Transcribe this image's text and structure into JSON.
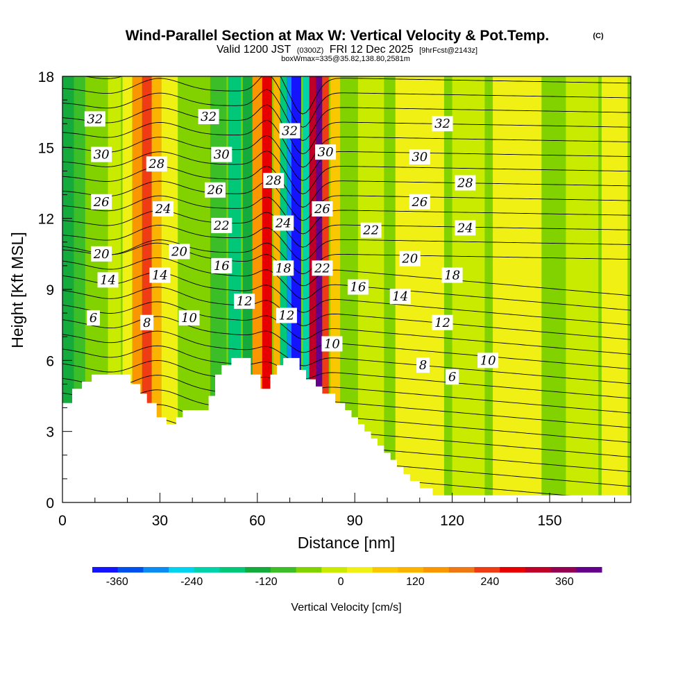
{
  "chart_data": {
    "type": "heatmap",
    "title": "Wind-Parallel Section at Max W: Vertical Velocity & Pot.Temp.",
    "title_mark": "(C)",
    "subtitle_parts": {
      "valid": "Valid 1200 JST",
      "utc": "(0300Z)",
      "date": "FRI 12 Dec 2025",
      "fcst": "[9hrFcst@2143z]"
    },
    "subtitle2": "boxWmax=335@35.82,138.80,2581m",
    "xlabel": "Distance [nm]",
    "ylabel": "Height [Kft MSL]",
    "xlim": [
      0,
      175
    ],
    "ylim": [
      0,
      18
    ],
    "xticks": [
      0,
      30,
      60,
      90,
      120,
      150
    ],
    "yticks": [
      0,
      3,
      6,
      9,
      12,
      15,
      18
    ],
    "colorbar": {
      "label": "Vertical Velocity [cm/s]",
      "tick_labels": [
        "-360",
        "-240",
        "-120",
        "0",
        "120",
        "240",
        "360"
      ],
      "tick_values": [
        -360,
        -240,
        -120,
        0,
        120,
        240,
        360
      ],
      "range": [
        -400,
        420
      ],
      "colors": [
        "#1414ff",
        "#0050f0",
        "#0a8cf0",
        "#00d2f0",
        "#00d2aa",
        "#00c878",
        "#14aa3c",
        "#3cbe28",
        "#82d200",
        "#c8eb00",
        "#f0f014",
        "#fac800",
        "#fab400",
        "#fa9600",
        "#f07814",
        "#f03c14",
        "#e60000",
        "#be0028",
        "#960050",
        "#64008c"
      ]
    },
    "terrain_profile": [
      [
        0,
        4.2
      ],
      [
        3,
        4.2
      ],
      [
        3,
        4.8
      ],
      [
        6,
        4.8
      ],
      [
        6,
        5.1
      ],
      [
        9,
        5.1
      ],
      [
        9,
        5.4
      ],
      [
        21,
        5.4
      ],
      [
        21,
        5.0
      ],
      [
        24,
        5.0
      ],
      [
        24,
        4.6
      ],
      [
        26,
        4.6
      ],
      [
        26,
        4.2
      ],
      [
        29,
        4.2
      ],
      [
        29,
        3.6
      ],
      [
        32,
        3.6
      ],
      [
        32,
        3.3
      ],
      [
        35,
        3.3
      ],
      [
        35,
        3.6
      ],
      [
        37,
        3.6
      ],
      [
        37,
        3.9
      ],
      [
        45,
        3.9
      ],
      [
        45,
        4.5
      ],
      [
        47,
        4.5
      ],
      [
        47,
        5.4
      ],
      [
        49,
        5.4
      ],
      [
        49,
        5.8
      ],
      [
        52,
        5.8
      ],
      [
        52,
        6.1
      ],
      [
        58,
        6.1
      ],
      [
        58,
        5.4
      ],
      [
        61,
        5.4
      ],
      [
        61,
        4.8
      ],
      [
        64,
        4.8
      ],
      [
        64,
        5.4
      ],
      [
        66,
        5.4
      ],
      [
        66,
        5.8
      ],
      [
        68,
        5.8
      ],
      [
        68,
        6.1
      ],
      [
        73,
        6.1
      ],
      [
        73,
        5.6
      ],
      [
        75,
        5.6
      ],
      [
        75,
        5.2
      ],
      [
        78,
        5.2
      ],
      [
        78,
        4.9
      ],
      [
        80,
        4.9
      ],
      [
        80,
        4.6
      ],
      [
        84,
        4.6
      ],
      [
        84,
        4.2
      ],
      [
        87,
        4.2
      ],
      [
        87,
        3.9
      ],
      [
        89,
        3.9
      ],
      [
        89,
        3.6
      ],
      [
        91,
        3.6
      ],
      [
        91,
        3.3
      ],
      [
        93,
        3.3
      ],
      [
        93,
        3.0
      ],
      [
        95,
        3.0
      ],
      [
        95,
        2.7
      ],
      [
        97,
        2.7
      ],
      [
        97,
        2.4
      ],
      [
        99,
        2.4
      ],
      [
        99,
        2.1
      ],
      [
        101,
        2.1
      ],
      [
        101,
        1.8
      ],
      [
        103,
        1.8
      ],
      [
        103,
        1.5
      ],
      [
        105,
        1.5
      ],
      [
        105,
        1.2
      ],
      [
        107,
        1.2
      ],
      [
        107,
        0.9
      ],
      [
        110,
        0.9
      ],
      [
        110,
        0.6
      ],
      [
        114,
        0.6
      ],
      [
        114,
        0.3
      ],
      [
        175,
        0.3
      ]
    ],
    "w_columns": [
      {
        "x": 2,
        "w": -140,
        "width": 5
      },
      {
        "x": 6,
        "w": -100,
        "width": 5
      },
      {
        "x": 10,
        "w": -60,
        "width": 6
      },
      {
        "x": 16,
        "w": -30,
        "width": 4
      },
      {
        "x": 20,
        "w": 40,
        "width": 3
      },
      {
        "x": 23,
        "w": 150,
        "width": 3
      },
      {
        "x": 26,
        "w": 220,
        "width": 3
      },
      {
        "x": 29,
        "w": 120,
        "width": 3
      },
      {
        "x": 33,
        "w": 10,
        "width": 5
      },
      {
        "x": 40,
        "w": -60,
        "width": 6
      },
      {
        "x": 48,
        "w": -110,
        "width": 5
      },
      {
        "x": 53,
        "w": -180,
        "width": 4
      },
      {
        "x": 57,
        "w": -130,
        "width": 3
      },
      {
        "x": 60,
        "w": 150,
        "width": 3
      },
      {
        "x": 63,
        "w": 260,
        "width": 3
      },
      {
        "x": 66,
        "w": 120,
        "width": 2
      },
      {
        "x": 68,
        "w": -160,
        "width": 2
      },
      {
        "x": 70,
        "w": -300,
        "width": 2
      },
      {
        "x": 72,
        "w": -380,
        "width": 3
      },
      {
        "x": 75,
        "w": -200,
        "width": 2
      },
      {
        "x": 77,
        "w": 320,
        "width": 2
      },
      {
        "x": 79,
        "w": 400,
        "width": 2
      },
      {
        "x": 81,
        "w": 240,
        "width": 2
      },
      {
        "x": 84,
        "w": 80,
        "width": 3
      },
      {
        "x": 88,
        "w": -40,
        "width": 4
      },
      {
        "x": 95,
        "w": -20,
        "width": 8
      },
      {
        "x": 110,
        "w": 10,
        "width": 15
      },
      {
        "x": 125,
        "w": -20,
        "width": 10
      },
      {
        "x": 140,
        "w": 20,
        "width": 15
      },
      {
        "x": 160,
        "w": -30,
        "width": 10
      },
      {
        "x": 170,
        "w": 10,
        "width": 8
      }
    ],
    "contour_labels": [
      {
        "text": "32",
        "x": 10,
        "y": 16.2
      },
      {
        "text": "30",
        "x": 12,
        "y": 14.7
      },
      {
        "text": "26",
        "x": 12,
        "y": 12.7
      },
      {
        "text": "20",
        "x": 12,
        "y": 10.5
      },
      {
        "text": "14",
        "x": 14,
        "y": 9.4
      },
      {
        "text": "6",
        "x": 9.5,
        "y": 7.8
      },
      {
        "text": "28",
        "x": 29,
        "y": 14.3
      },
      {
        "text": "24",
        "x": 31,
        "y": 12.4
      },
      {
        "text": "20",
        "x": 36,
        "y": 10.6
      },
      {
        "text": "14",
        "x": 30,
        "y": 9.6
      },
      {
        "text": "8",
        "x": 26,
        "y": 7.6
      },
      {
        "text": "10",
        "x": 39,
        "y": 7.8
      },
      {
        "text": "32",
        "x": 45,
        "y": 16.3
      },
      {
        "text": "30",
        "x": 49,
        "y": 14.7
      },
      {
        "text": "26",
        "x": 47,
        "y": 13.2
      },
      {
        "text": "22",
        "x": 49,
        "y": 11.7
      },
      {
        "text": "16",
        "x": 49,
        "y": 10.0
      },
      {
        "text": "12",
        "x": 56,
        "y": 8.5
      },
      {
        "text": "32",
        "x": 70,
        "y": 15.7
      },
      {
        "text": "28",
        "x": 65,
        "y": 13.6
      },
      {
        "text": "24",
        "x": 68,
        "y": 11.8
      },
      {
        "text": "18",
        "x": 68,
        "y": 9.9
      },
      {
        "text": "12",
        "x": 69,
        "y": 7.9
      },
      {
        "text": "30",
        "x": 81,
        "y": 14.8
      },
      {
        "text": "26",
        "x": 80,
        "y": 12.4
      },
      {
        "text": "22",
        "x": 80,
        "y": 9.9
      },
      {
        "text": "10",
        "x": 83,
        "y": 6.7
      },
      {
        "text": "22",
        "x": 95,
        "y": 11.5
      },
      {
        "text": "16",
        "x": 91,
        "y": 9.1
      },
      {
        "text": "20",
        "x": 107,
        "y": 10.3
      },
      {
        "text": "14",
        "x": 104,
        "y": 8.7
      },
      {
        "text": "26",
        "x": 110,
        "y": 12.7
      },
      {
        "text": "30",
        "x": 110,
        "y": 14.6
      },
      {
        "text": "32",
        "x": 117,
        "y": 16.0
      },
      {
        "text": "28",
        "x": 124,
        "y": 13.5
      },
      {
        "text": "24",
        "x": 124,
        "y": 11.6
      },
      {
        "text": "18",
        "x": 120,
        "y": 9.6
      },
      {
        "text": "12",
        "x": 117,
        "y": 7.6
      },
      {
        "text": "8",
        "x": 111,
        "y": 5.8
      },
      {
        "text": "6",
        "x": 120,
        "y": 5.3
      },
      {
        "text": "10",
        "x": 131,
        "y": 6.0
      }
    ],
    "isentrope_count": 28
  }
}
